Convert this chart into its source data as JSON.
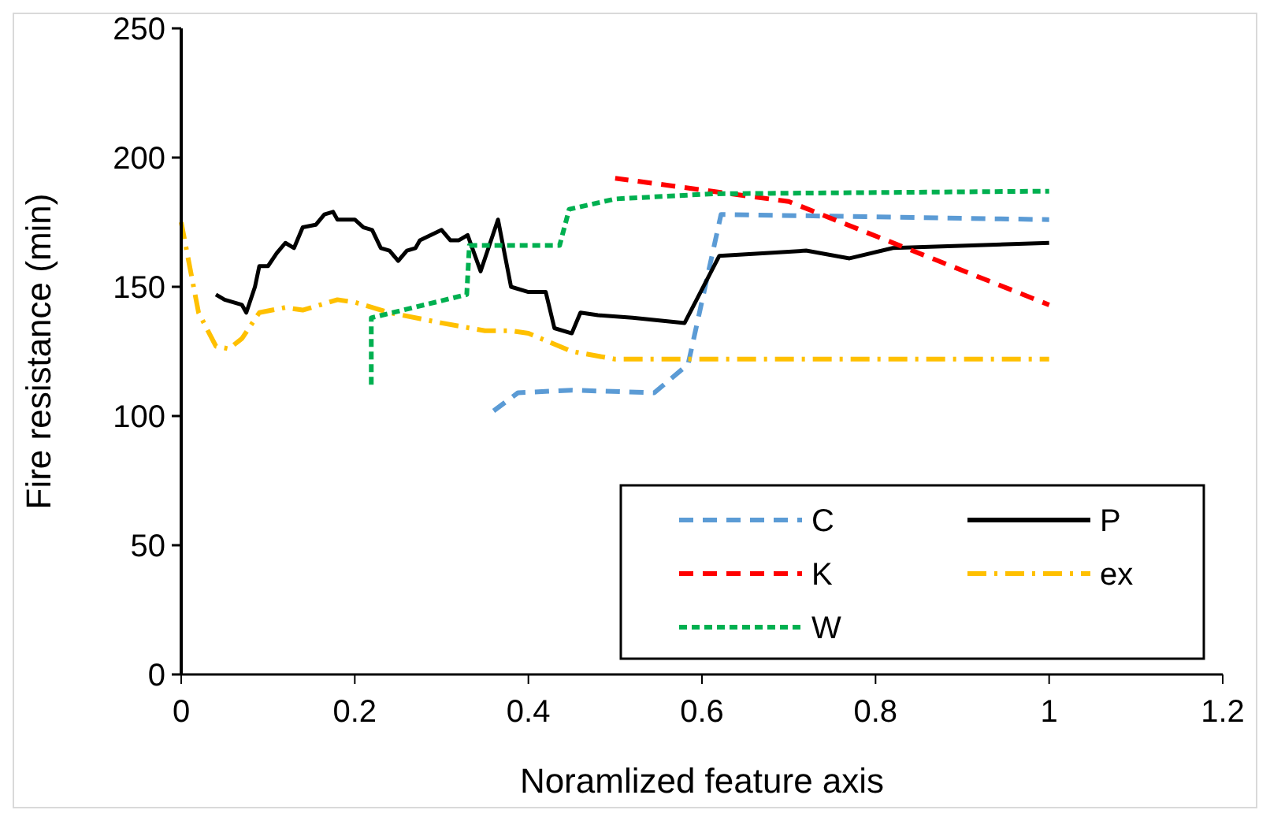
{
  "chart_data": {
    "type": "line",
    "xlabel": "Noramlized feature axis",
    "ylabel": "Fire resistance (min)",
    "xlim": [
      0,
      1.2
    ],
    "ylim": [
      0,
      250
    ],
    "xticks": [
      0,
      0.2,
      0.4,
      0.6,
      0.8,
      1,
      1.2
    ],
    "yticks": [
      0,
      50,
      100,
      150,
      200,
      250
    ],
    "grid": false,
    "legend": "bottom right",
    "marker": "none",
    "series": [
      {
        "name": "C",
        "color": "#5b9bd5",
        "line_style": "dashed",
        "x": [
          0.356,
          0.388,
          0.45,
          0.545,
          0.584,
          0.622,
          1.0
        ],
        "values": [
          101,
          109,
          110,
          109,
          120,
          178,
          176
        ]
      },
      {
        "name": "P",
        "color": "#000000",
        "line_style": "solid",
        "x": [
          0.04,
          0.05,
          0.07,
          0.075,
          0.085,
          0.09,
          0.1,
          0.11,
          0.12,
          0.13,
          0.14,
          0.155,
          0.165,
          0.175,
          0.18,
          0.2,
          0.21,
          0.22,
          0.23,
          0.24,
          0.25,
          0.26,
          0.27,
          0.275,
          0.3,
          0.31,
          0.32,
          0.33,
          0.345,
          0.365,
          0.38,
          0.4,
          0.42,
          0.43,
          0.45,
          0.46,
          0.48,
          0.52,
          0.58,
          0.62,
          0.72,
          0.77,
          0.82,
          1.0
        ],
        "values": [
          147,
          145,
          143,
          140,
          150,
          158,
          158,
          163,
          167,
          165,
          173,
          174,
          178,
          179,
          176,
          176,
          173,
          172,
          165,
          164,
          160,
          164,
          165,
          168,
          172,
          168,
          168,
          170,
          156,
          176,
          150,
          148,
          148,
          134,
          132,
          140,
          139,
          138,
          136,
          162,
          164,
          161,
          165,
          167
        ]
      },
      {
        "name": "K",
        "color": "#ff0000",
        "line_style": "dashed",
        "x": [
          0.5,
          0.7,
          1.0
        ],
        "values": [
          192,
          183,
          143
        ]
      },
      {
        "name": "ex",
        "color": "#ffc000",
        "line_style": "dashdot",
        "x": [
          0,
          0.02,
          0.04,
          0.055,
          0.07,
          0.09,
          0.12,
          0.14,
          0.18,
          0.2,
          0.24,
          0.3,
          0.35,
          0.38,
          0.4,
          0.45,
          0.5,
          1.0
        ],
        "values": [
          175,
          140,
          127,
          126,
          130,
          140,
          142,
          141,
          145,
          144,
          140,
          136,
          133,
          133,
          132,
          125,
          122,
          122
        ]
      },
      {
        "name": "W",
        "color": "#00b050",
        "line_style": "dotted",
        "x": [
          0.219,
          0.219,
          0.329,
          0.332,
          0.436,
          0.447,
          0.5,
          0.613,
          1.0
        ],
        "values": [
          112,
          138,
          147,
          166,
          166,
          180,
          184,
          186,
          187
        ]
      }
    ]
  }
}
